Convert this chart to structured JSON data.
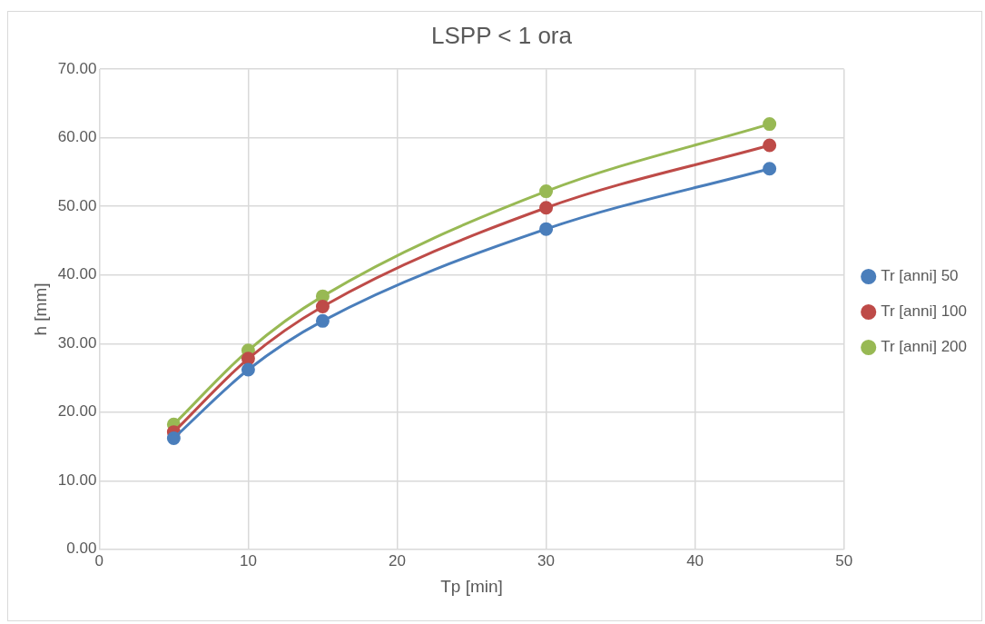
{
  "chart_data": {
    "type": "line",
    "title": "LSPP < 1 ora",
    "xlabel": "Tp [min]",
    "ylabel": "h [mm]",
    "x": [
      5,
      10,
      15,
      30,
      45
    ],
    "series": [
      {
        "name": "Tr [anni] 50",
        "color": "#4a7ebb",
        "values": [
          16.2,
          26.2,
          33.3,
          46.7,
          55.5
        ]
      },
      {
        "name": "Tr [anni] 100",
        "color": "#be4b48",
        "values": [
          17.1,
          27.8,
          35.4,
          49.8,
          58.9
        ]
      },
      {
        "name": "Tr [anni] 200",
        "color": "#98b954",
        "values": [
          18.2,
          29.0,
          36.9,
          52.2,
          62.0
        ]
      }
    ],
    "xlim": [
      0,
      50
    ],
    "xticks": [
      0,
      10,
      20,
      30,
      40,
      50
    ],
    "ylim": [
      0,
      70
    ],
    "yticks": [
      {
        "value": 0,
        "label": "0.00"
      },
      {
        "value": 10,
        "label": "10.00"
      },
      {
        "value": 20,
        "label": "20.00"
      },
      {
        "value": 30,
        "label": "30.00"
      },
      {
        "value": 40,
        "label": "40.00"
      },
      {
        "value": 50,
        "label": "50.00"
      },
      {
        "value": 60,
        "label": "60.00"
      },
      {
        "value": 70,
        "label": "70.00"
      }
    ],
    "grid": true,
    "legend": "right",
    "marker": "circle",
    "line_style": "solid"
  }
}
